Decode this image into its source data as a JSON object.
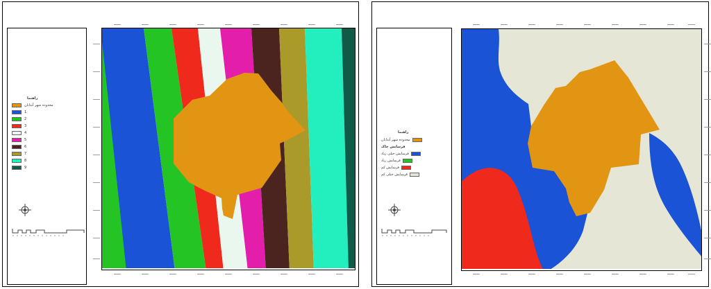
{
  "left_map": {
    "legend": {
      "title": "راهنما",
      "items": [
        {
          "label": "محدوده شهر آبدانان",
          "color": "#e29512"
        },
        {
          "label": "1",
          "color": "#1b53d6"
        },
        {
          "label": "2",
          "color": "#25c425"
        },
        {
          "label": "3",
          "color": "#ef2a1c"
        },
        {
          "label": "4",
          "color": "#e9f7ef"
        },
        {
          "label": "5",
          "color": "#e21eaa"
        },
        {
          "label": "6",
          "color": "#4b2420"
        },
        {
          "label": "7",
          "color": "#a99a2a"
        },
        {
          "label": "8",
          "color": "#22eebe"
        },
        {
          "label": "9",
          "color": "#0f5a48"
        }
      ]
    }
  },
  "right_map": {
    "legend": {
      "title": "راهنما",
      "items": [
        {
          "label": "محدوده شهر آبدانان",
          "color": "#e29512"
        },
        {
          "label": "فرسایش خاک",
          "color": null,
          "heading": true
        },
        {
          "label": "فرسایش خیلی زیاد",
          "color": "#1b53d6"
        },
        {
          "label": "فرسایش زیاد",
          "color": "#25c425"
        },
        {
          "label": "فرسایش کم",
          "color": "#ef2a1c"
        },
        {
          "label": "فرسایش خیلی کم",
          "color": "#e6e6d6"
        }
      ]
    },
    "colors": {
      "background": "#e6e6d6",
      "high": "#1b53d6",
      "low": "#ef2a1c",
      "city": "#e29512"
    }
  }
}
